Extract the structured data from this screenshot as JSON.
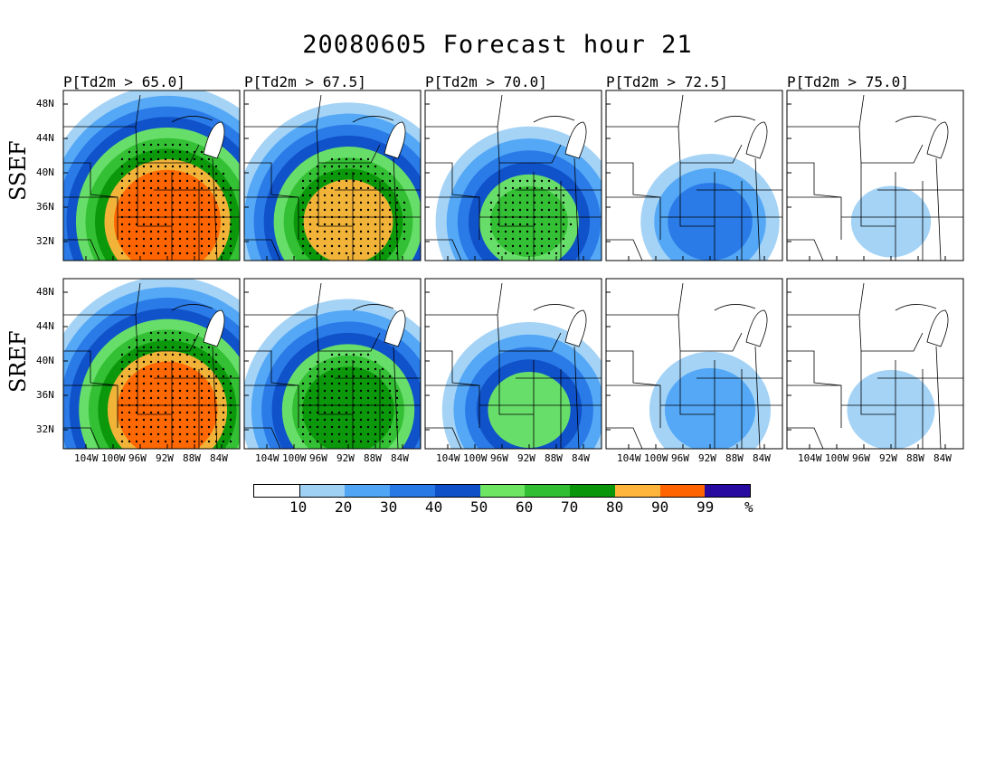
{
  "title": "20080605 Forecast hour 21",
  "rows": [
    {
      "label": "SSEF"
    },
    {
      "label": "SREF"
    }
  ],
  "columns": [
    {
      "label": "P[Td2m > 65.0]"
    },
    {
      "label": "P[Td2m > 67.5]"
    },
    {
      "label": "P[Td2m > 70.0]"
    },
    {
      "label": "P[Td2m > 72.5]"
    },
    {
      "label": "P[Td2m > 75.0]"
    }
  ],
  "lat_ticks": [
    "48N",
    "44N",
    "40N",
    "36N",
    "32N"
  ],
  "lon_ticks": [
    "104W",
    "100W",
    "96W",
    "92W",
    "88W",
    "84W"
  ],
  "colorbar": {
    "colors": [
      "#ffffff",
      "#9fd1f5",
      "#50a5f5",
      "#2878e6",
      "#0f50c8",
      "#6ee664",
      "#32be32",
      "#0a960a",
      "#ffb43c",
      "#ff6400",
      "#280aa0"
    ],
    "labels": [
      "10",
      "20",
      "30",
      "40",
      "50",
      "60",
      "70",
      "80",
      "90",
      "99",
      "%"
    ]
  },
  "panels": [
    {
      "row": 0,
      "col": 0,
      "level": 0.95
    },
    {
      "row": 0,
      "col": 1,
      "level": 0.78
    },
    {
      "row": 0,
      "col": 2,
      "level": 0.55
    },
    {
      "row": 0,
      "col": 3,
      "level": 0.3
    },
    {
      "row": 0,
      "col": 4,
      "level": 0.08
    },
    {
      "row": 1,
      "col": 0,
      "level": 0.92
    },
    {
      "row": 1,
      "col": 1,
      "level": 0.7
    },
    {
      "row": 1,
      "col": 2,
      "level": 0.48
    },
    {
      "row": 1,
      "col": 3,
      "level": 0.22
    },
    {
      "row": 1,
      "col": 4,
      "level": 0.1
    }
  ]
}
